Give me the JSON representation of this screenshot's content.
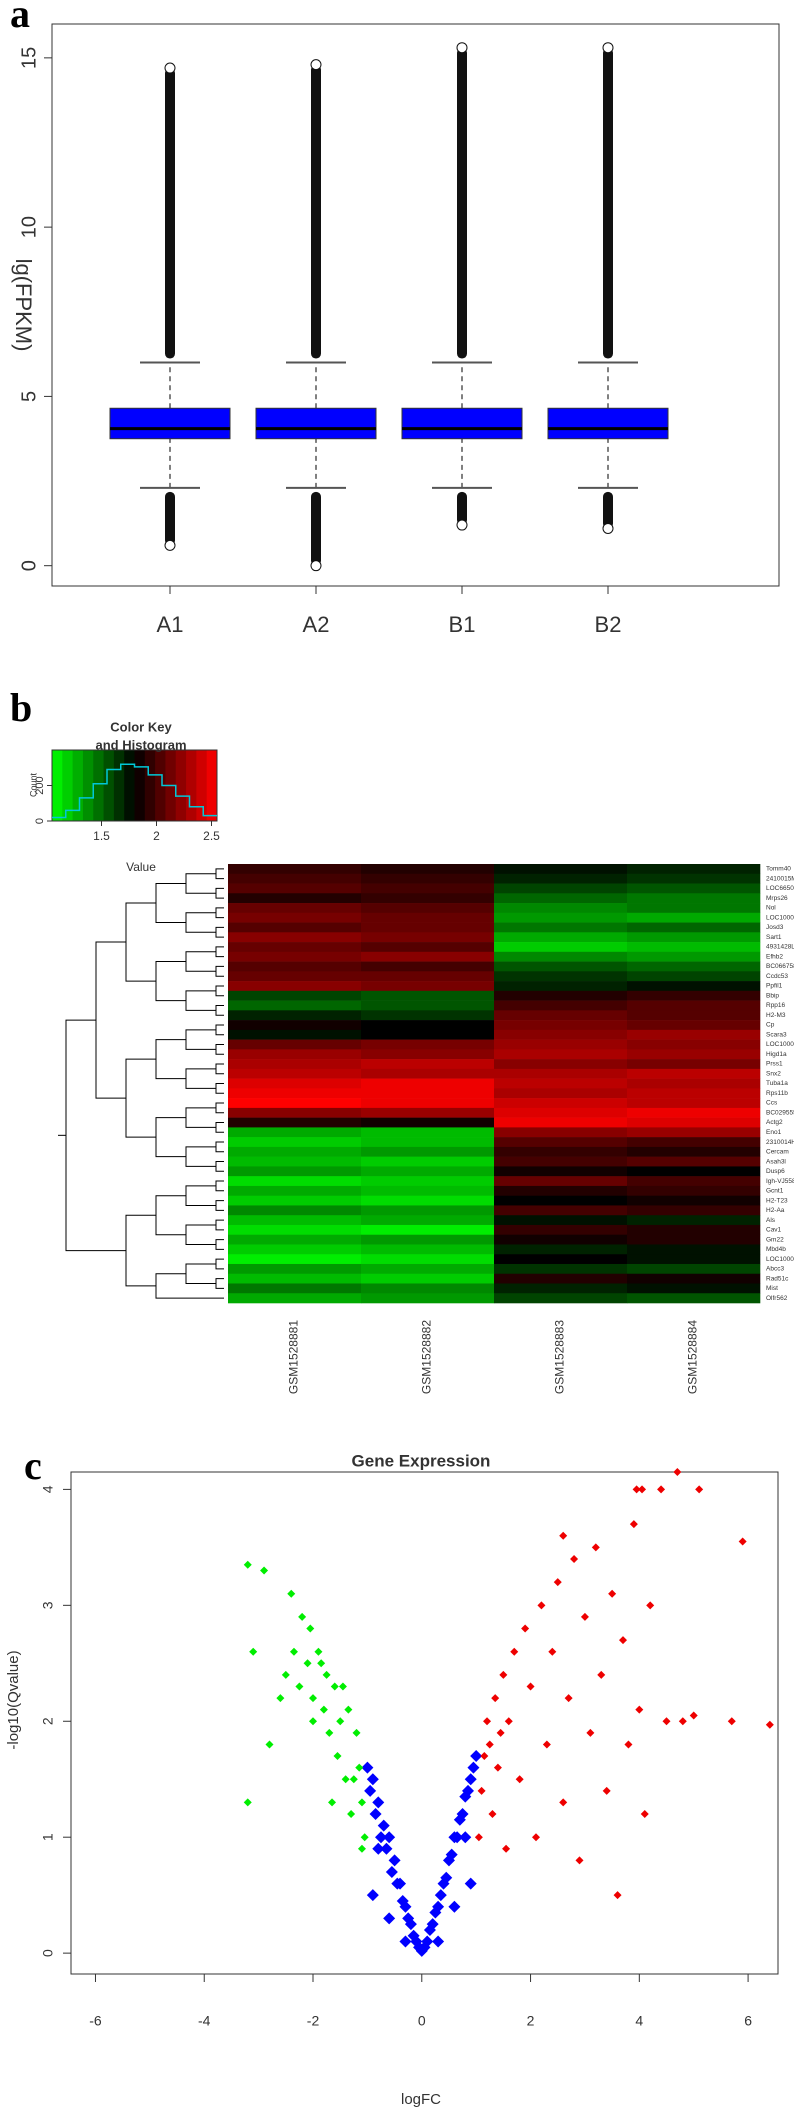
{
  "chart_data": [
    {
      "type": "box",
      "panel_label": "a",
      "ylabel": "lg(FPKM)",
      "categories": [
        "A1",
        "A2",
        "B1",
        "B2"
      ],
      "color": "#0000ff",
      "ylim": [
        -0.6,
        16
      ],
      "yticks": [
        0,
        5,
        10,
        15
      ],
      "boxes": [
        {
          "low": 2.3,
          "q1": 3.75,
          "median": 4.05,
          "q3": 4.65,
          "high": 6.0,
          "outlier_min": 0.6,
          "outlier_max": 14.7
        },
        {
          "low": 2.3,
          "q1": 3.75,
          "median": 4.05,
          "q3": 4.65,
          "high": 6.0,
          "outlier_min": 0.0,
          "outlier_max": 14.8
        },
        {
          "low": 2.3,
          "q1": 3.75,
          "median": 4.05,
          "q3": 4.65,
          "high": 6.0,
          "outlier_min": 1.2,
          "outlier_max": 15.3
        },
        {
          "low": 2.3,
          "q1": 3.75,
          "median": 4.05,
          "q3": 4.65,
          "high": 6.0,
          "outlier_min": 1.1,
          "outlier_max": 15.3
        }
      ]
    },
    {
      "type": "heatmap",
      "panel_label": "b",
      "columns": [
        "GSM1528881",
        "GSM1528882",
        "GSM1528883",
        "GSM1528884"
      ],
      "rows": [
        "Tomm40",
        "2410015M20Rik",
        "LOC665036",
        "Mrps26",
        "Nol",
        "LOC100043675",
        "Josd3",
        "Sart1",
        "4931428L18Rik",
        "Efhb2",
        "BC066758",
        "Ccdc53",
        "Ppfil1",
        "Bbip",
        "Rpp16",
        "H2-M3",
        "Cp",
        "Scara3",
        "LOC100047261",
        "Higd1a",
        "Prss1",
        "Snx2",
        "Tuba1a",
        "Rps11b",
        "Ccs",
        "BC029555",
        "Actg2",
        "Eno1",
        "2310014H01Rik",
        "Cercam",
        "Asah3l",
        "Dusp6",
        "Igh-VJ558",
        "Gcnt1",
        "H2-T23",
        "H2-Aa",
        "Als",
        "Cav1",
        "Gm22",
        "Mbd4b",
        "LOC100048554",
        "Abcc3",
        "Rad51c",
        "Mist",
        "Olfr562"
      ],
      "values": [
        [
          1.95,
          1.9,
          1.75,
          1.7
        ],
        [
          2.0,
          1.95,
          1.7,
          1.65
        ],
        [
          2.05,
          2.0,
          1.6,
          1.55
        ],
        [
          1.9,
          1.95,
          1.5,
          1.45
        ],
        [
          2.1,
          2.05,
          1.4,
          1.45
        ],
        [
          2.15,
          2.1,
          1.35,
          1.3
        ],
        [
          2.05,
          2.1,
          1.45,
          1.5
        ],
        [
          2.2,
          2.15,
          1.3,
          1.35
        ],
        [
          2.1,
          2.05,
          1.2,
          1.25
        ],
        [
          2.15,
          2.2,
          1.4,
          1.35
        ],
        [
          2.05,
          2.0,
          1.55,
          1.5
        ],
        [
          2.1,
          2.1,
          1.65,
          1.6
        ],
        [
          2.2,
          2.15,
          1.7,
          1.75
        ],
        [
          1.6,
          1.55,
          1.9,
          1.95
        ],
        [
          1.5,
          1.55,
          2.0,
          2.05
        ],
        [
          1.7,
          1.65,
          2.1,
          2.05
        ],
        [
          1.85,
          1.8,
          2.15,
          2.1
        ],
        [
          1.75,
          1.8,
          2.2,
          2.25
        ],
        [
          2.1,
          2.15,
          2.25,
          2.2
        ],
        [
          2.25,
          2.2,
          2.3,
          2.25
        ],
        [
          2.3,
          2.35,
          2.2,
          2.15
        ],
        [
          2.35,
          2.3,
          2.3,
          2.35
        ],
        [
          2.45,
          2.5,
          2.35,
          2.3
        ],
        [
          2.5,
          2.5,
          2.3,
          2.35
        ],
        [
          2.55,
          2.5,
          2.4,
          2.35
        ],
        [
          2.2,
          2.25,
          2.45,
          2.5
        ],
        [
          1.9,
          1.85,
          2.5,
          2.45
        ],
        [
          1.3,
          1.25,
          2.2,
          2.25
        ],
        [
          1.2,
          1.25,
          2.05,
          2.0
        ],
        [
          1.3,
          1.35,
          1.95,
          1.9
        ],
        [
          1.25,
          1.2,
          2.0,
          2.05
        ],
        [
          1.35,
          1.3,
          1.85,
          1.8
        ],
        [
          1.15,
          1.2,
          2.1,
          2.0
        ],
        [
          1.3,
          1.25,
          1.9,
          1.95
        ],
        [
          1.2,
          1.15,
          1.8,
          1.85
        ],
        [
          1.4,
          1.35,
          2.0,
          1.95
        ],
        [
          1.25,
          1.3,
          1.75,
          1.7
        ],
        [
          1.15,
          1.1,
          1.95,
          1.9
        ],
        [
          1.3,
          1.35,
          1.85,
          1.9
        ],
        [
          1.2,
          1.25,
          1.7,
          1.75
        ],
        [
          1.1,
          1.15,
          1.8,
          1.75
        ],
        [
          1.35,
          1.3,
          1.65,
          1.6
        ],
        [
          1.25,
          1.2,
          1.9,
          1.85
        ],
        [
          1.45,
          1.4,
          1.7,
          1.75
        ],
        [
          1.3,
          1.35,
          1.6,
          1.55
        ]
      ],
      "color_key": {
        "title": [
          "Color Key",
          "and Histogram"
        ],
        "xlabel": "Value",
        "ylabel": "Count",
        "xlim": [
          1.05,
          2.55
        ],
        "xticks": [
          1.5,
          2,
          2.5
        ],
        "ylim": [
          0,
          400
        ],
        "yticks": [
          0,
          200
        ],
        "low_color": "#00ff00",
        "mid_color": "#000000",
        "high_color": "#ff0000",
        "mid_value": 1.8,
        "hist_color": "#00c8d8",
        "bins": [
          1.05,
          1.175,
          1.3,
          1.425,
          1.55,
          1.675,
          1.8,
          1.925,
          2.05,
          2.175,
          2.3,
          2.425,
          2.55
        ],
        "counts": [
          20,
          60,
          130,
          210,
          290,
          320,
          305,
          260,
          200,
          140,
          80,
          30
        ]
      }
    },
    {
      "type": "scatter",
      "panel_label": "c",
      "title": "Gene Expression",
      "xlabel": "logFC",
      "ylabel": "-log10(Qvalue)",
      "xlim": [
        -6.45,
        6.55
      ],
      "xticks": [
        -6,
        -4,
        -2,
        0,
        2,
        4,
        6
      ],
      "ylim": [
        -0.18,
        4.15
      ],
      "yticks": [
        0,
        1,
        2,
        3,
        4
      ],
      "series": [
        {
          "color": "#0000ff",
          "x": [
            -1.0,
            -0.95,
            -0.9,
            -0.85,
            -0.8,
            -0.75,
            -0.7,
            -0.65,
            -0.6,
            -0.55,
            -0.5,
            -0.45,
            -0.4,
            -0.35,
            -0.3,
            -0.25,
            -0.2,
            -0.15,
            -0.1,
            -0.05,
            0,
            0.05,
            0.1,
            0.15,
            0.2,
            0.25,
            0.3,
            0.35,
            0.4,
            0.45,
            0.5,
            0.55,
            0.6,
            0.65,
            0.7,
            0.75,
            0.8,
            0.85,
            0.9,
            0.95,
            1.0,
            -0.9,
            -0.6,
            -0.3,
            0.3,
            0.6,
            0.9,
            -0.8,
            0.8
          ],
          "values": [
            1.6,
            1.4,
            1.5,
            1.2,
            1.3,
            1.0,
            1.1,
            0.9,
            1.0,
            0.7,
            0.8,
            0.6,
            0.6,
            0.45,
            0.4,
            0.3,
            0.25,
            0.15,
            0.1,
            0.05,
            0.02,
            0.05,
            0.1,
            0.2,
            0.25,
            0.35,
            0.4,
            0.5,
            0.6,
            0.65,
            0.8,
            0.85,
            1.0,
            1.0,
            1.15,
            1.2,
            1.35,
            1.4,
            1.5,
            1.6,
            1.7,
            0.5,
            0.3,
            0.1,
            0.1,
            0.4,
            0.6,
            0.9,
            1.0
          ]
        },
        {
          "color": "#00ee00",
          "x": [
            -1.05,
            -1.1,
            -1.15,
            -1.2,
            -1.3,
            -1.35,
            -1.4,
            -1.5,
            -1.55,
            -1.6,
            -1.7,
            -1.75,
            -1.8,
            -1.9,
            -2.0,
            -2.05,
            -2.1,
            -2.2,
            -2.25,
            -2.35,
            -2.5,
            -2.6,
            -2.8,
            -3.1,
            -3.2,
            -3.2,
            -2.9,
            -2.4,
            -1.25,
            -1.45,
            -1.65,
            -1.1,
            -2.0,
            -1.85
          ],
          "values": [
            1.0,
            1.3,
            1.6,
            1.9,
            1.2,
            2.1,
            1.5,
            2.0,
            1.7,
            2.3,
            1.9,
            2.4,
            2.1,
            2.6,
            2.2,
            2.8,
            2.5,
            2.9,
            2.3,
            2.6,
            2.4,
            2.2,
            1.8,
            2.6,
            1.3,
            3.35,
            3.3,
            3.1,
            1.5,
            2.3,
            1.3,
            0.9,
            2.0,
            2.5
          ]
        },
        {
          "color": "#ee0000",
          "x": [
            1.05,
            1.1,
            1.15,
            1.2,
            1.3,
            1.35,
            1.4,
            1.5,
            1.55,
            1.6,
            1.7,
            1.8,
            1.9,
            2.0,
            2.1,
            2.2,
            2.3,
            2.4,
            2.5,
            2.6,
            2.7,
            2.8,
            2.9,
            3.0,
            3.1,
            3.2,
            3.3,
            3.4,
            3.5,
            3.6,
            3.7,
            3.8,
            3.9,
            4.0,
            4.1,
            4.2,
            4.5,
            4.7,
            4.8,
            5.0,
            5.1,
            5.7,
            5.9,
            6.4,
            4.05,
            3.95,
            4.4,
            2.6,
            1.25,
            1.45
          ],
          "values": [
            1.0,
            1.4,
            1.7,
            2.0,
            1.2,
            2.2,
            1.6,
            2.4,
            0.9,
            2.0,
            2.6,
            1.5,
            2.8,
            2.3,
            1.0,
            3.0,
            1.8,
            2.6,
            3.2,
            1.3,
            2.2,
            3.4,
            0.8,
            2.9,
            1.9,
            3.5,
            2.4,
            1.4,
            3.1,
            0.5,
            2.7,
            1.8,
            3.7,
            2.1,
            1.2,
            3.0,
            2.0,
            4.15,
            2.0,
            2.05,
            4.0,
            2.0,
            3.55,
            1.97,
            4.0,
            4.0,
            4.0,
            3.6,
            1.8,
            1.9
          ]
        }
      ]
    }
  ]
}
